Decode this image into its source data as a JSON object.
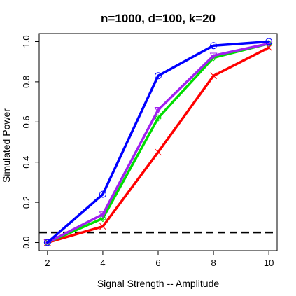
{
  "chart_data": {
    "type": "line",
    "title": "n=1000, d=100, k=20",
    "xlabel": "Signal Strength -- Amplitude",
    "ylabel": "Simulated Power",
    "x": [
      2,
      4,
      6,
      8,
      10
    ],
    "xticks": [
      "2",
      "4",
      "6",
      "8",
      "10"
    ],
    "yticks": [
      "0.0",
      "0.2",
      "0.4",
      "0.6",
      "0.8",
      "1.0"
    ],
    "xlim": [
      1.7,
      10.3
    ],
    "ylim": [
      -0.04,
      1.04
    ],
    "grid": false,
    "reference_line": {
      "y": 0.05,
      "style": "dashed",
      "color": "#000000"
    },
    "series": [
      {
        "color": "#ff0000",
        "marker": "x",
        "values": [
          0.0,
          0.08,
          0.45,
          0.83,
          0.97
        ]
      },
      {
        "color": "#00dd00",
        "marker": "diamond",
        "values": [
          0.0,
          0.12,
          0.62,
          0.92,
          0.99
        ]
      },
      {
        "color": "#a020f0",
        "marker": "triangle-down",
        "values": [
          0.0,
          0.14,
          0.66,
          0.93,
          0.99
        ]
      },
      {
        "color": "#0000ff",
        "marker": "circle",
        "values": [
          0.0,
          0.24,
          0.83,
          0.98,
          1.0
        ]
      }
    ]
  }
}
